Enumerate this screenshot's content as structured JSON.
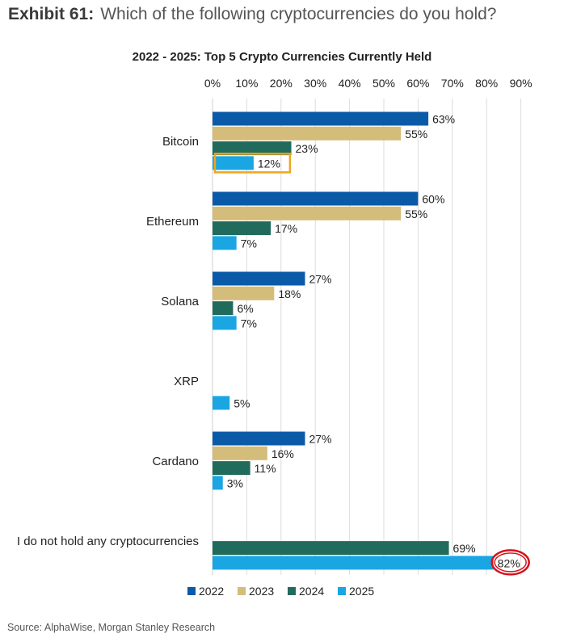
{
  "header": {
    "exhibit_label": "Exhibit 61:",
    "question": "Which of the following cryptocurrencies do you hold?"
  },
  "source": "Source: AlphaWise, Morgan Stanley Research",
  "colors": {
    "2022": "#0b5aa8",
    "2023": "#d4bc7a",
    "2024": "#216b5c",
    "2025": "#1aa6e2",
    "gridline": "#dcdcdc",
    "highlight_box": "#f0a51c",
    "highlight_circle": "#d6121b"
  },
  "chart_data": {
    "type": "bar",
    "orientation": "horizontal",
    "title": "2022 - 2025: Top 5 Crypto Currencies Currently Held",
    "xlim": [
      0,
      90
    ],
    "x_ticks": [
      "0%",
      "10%",
      "20%",
      "30%",
      "40%",
      "50%",
      "60%",
      "70%",
      "80%",
      "90%"
    ],
    "x_tick_values": [
      0,
      10,
      20,
      30,
      40,
      50,
      60,
      70,
      80,
      90
    ],
    "grid": true,
    "legend_position": "bottom",
    "categories": [
      "Bitcoin",
      "Ethereum",
      "Solana",
      "XRP",
      "Cardano",
      "I do not hold any cryptocurrencies"
    ],
    "series": [
      {
        "name": "2022",
        "values": [
          63,
          60,
          27,
          null,
          27,
          null
        ],
        "labels": [
          "63%",
          "60%",
          "27%",
          "",
          "27%",
          ""
        ]
      },
      {
        "name": "2023",
        "values": [
          55,
          55,
          18,
          null,
          16,
          null
        ],
        "labels": [
          "55%",
          "55%",
          "18%",
          "",
          "16%",
          ""
        ]
      },
      {
        "name": "2024",
        "values": [
          23,
          17,
          6,
          null,
          11,
          69
        ],
        "labels": [
          "23%",
          "17%",
          "6%",
          "",
          "11%",
          "69%"
        ]
      },
      {
        "name": "2025",
        "values": [
          12,
          7,
          7,
          5,
          3,
          82
        ],
        "labels": [
          "12%",
          "7%",
          "7%",
          "5%",
          "3%",
          "82%"
        ]
      }
    ],
    "annotations": [
      {
        "type": "box",
        "category": "Bitcoin",
        "series": "2025"
      },
      {
        "type": "circle",
        "category": "I do not hold any cryptocurrencies",
        "series": "2025"
      }
    ]
  }
}
